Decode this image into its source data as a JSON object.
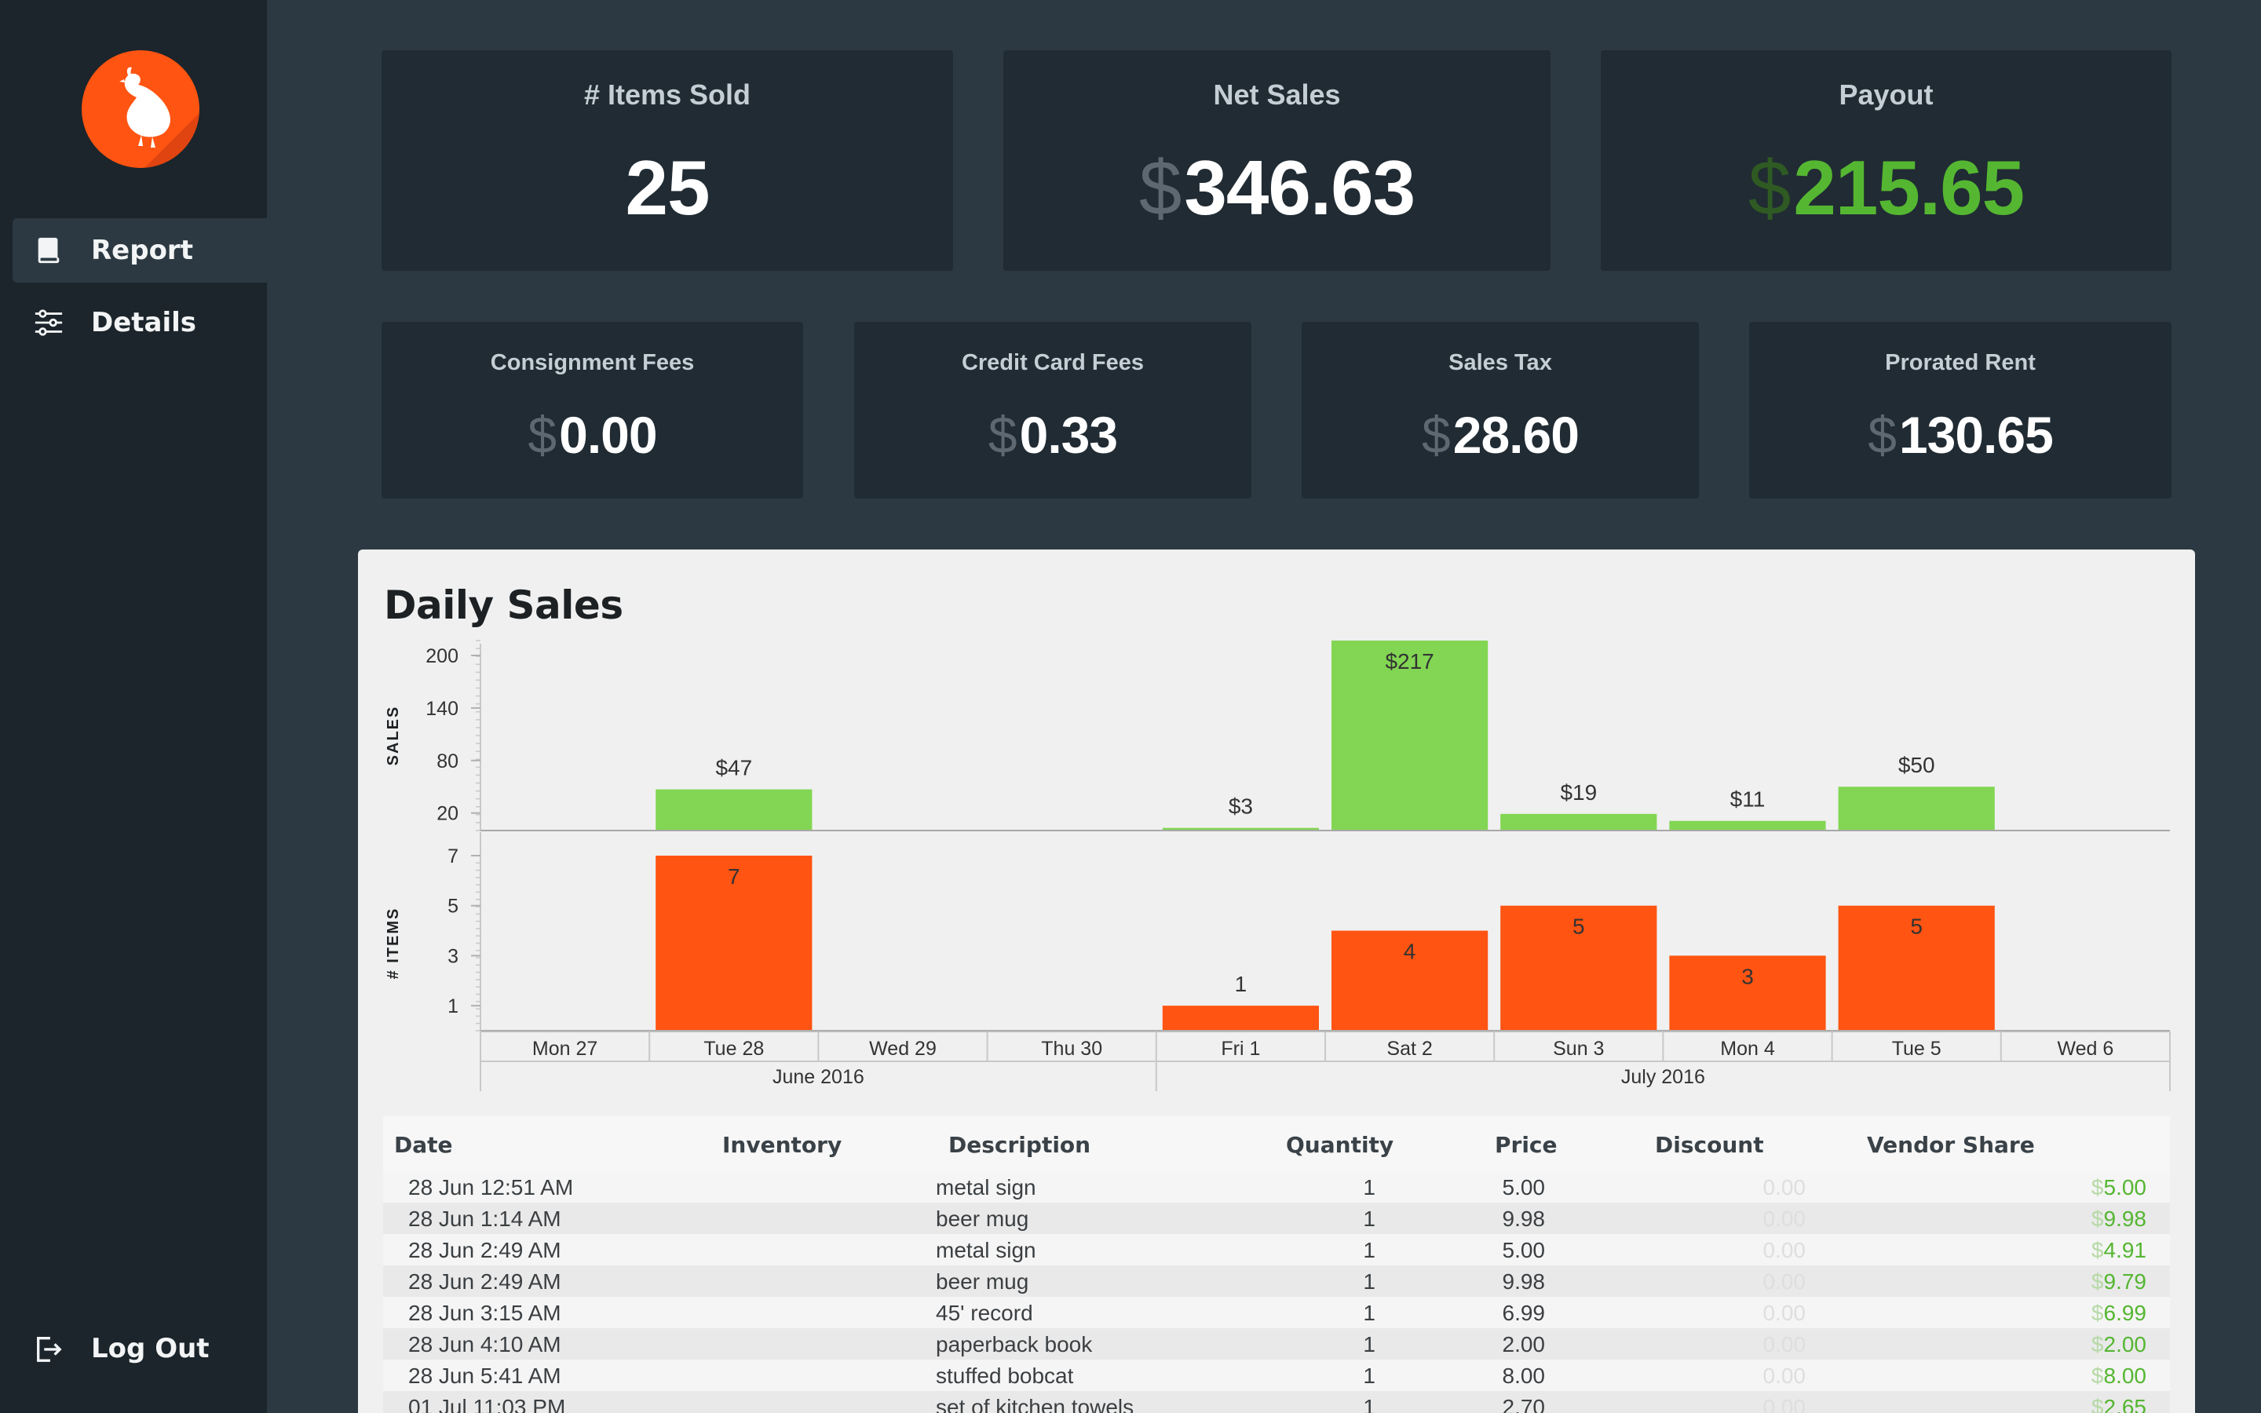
{
  "nav": {
    "report": "Report",
    "details": "Details",
    "logout": "Log Out"
  },
  "stats_top": [
    {
      "label": "# Items Sold",
      "value": "25",
      "currency": ""
    },
    {
      "label": "Net Sales",
      "value": "346.63",
      "currency": "$"
    },
    {
      "label": "Payout",
      "value": "215.65",
      "currency": "$"
    }
  ],
  "stats_bottom": [
    {
      "label": "Consignment Fees",
      "value": "0.00",
      "currency": "$"
    },
    {
      "label": "Credit Card Fees",
      "value": "0.33",
      "currency": "$"
    },
    {
      "label": "Sales Tax",
      "value": "28.60",
      "currency": "$"
    },
    {
      "label": "Prorated Rent",
      "value": "130.65",
      "currency": "$"
    }
  ],
  "panel": {
    "title": "Daily Sales"
  },
  "colors": {
    "sales_bar": "#82d653",
    "items_bar": "#ff5412",
    "payout": "#55b632",
    "accent": "#ff5412"
  },
  "icons": {
    "logo": "quail-logo-icon",
    "report": "book-icon",
    "details": "sliders-icon",
    "logout": "logout-icon"
  },
  "chart_data": {
    "type": "bar",
    "categories": [
      "Mon 27",
      "Tue 28",
      "Wed 29",
      "Thu 30",
      "Fri 1",
      "Sat 2",
      "Sun 3",
      "Mon 4",
      "Tue 5",
      "Wed 6"
    ],
    "groups": [
      {
        "label": "June 2016",
        "span": 4
      },
      {
        "label": "July 2016",
        "span": 6
      }
    ],
    "series": [
      {
        "name": "SALES",
        "values": [
          0,
          47,
          0,
          0,
          3,
          217,
          19,
          11,
          50,
          0
        ],
        "labels": [
          "",
          "$47",
          "",
          "",
          "$3",
          "$217",
          "$19",
          "$11",
          "$50",
          ""
        ],
        "ylabel": "SALES",
        "yticks": [
          20,
          80,
          140,
          200
        ],
        "ylim": [
          0,
          217
        ]
      },
      {
        "name": "# ITEMS",
        "values": [
          0,
          7,
          0,
          0,
          1,
          4,
          5,
          3,
          5,
          0
        ],
        "labels": [
          "",
          "7",
          "",
          "",
          "1",
          "4",
          "5",
          "3",
          "5",
          ""
        ],
        "ylabel": "# ITEMS",
        "yticks": [
          1,
          3,
          5,
          7
        ],
        "ylim": [
          0,
          7
        ]
      }
    ]
  },
  "table": {
    "headers": [
      "Date",
      "Inventory",
      "Description",
      "Quantity",
      "Price",
      "Discount",
      "Vendor Share"
    ],
    "rows": [
      {
        "date": "28 Jun 12:51 AM",
        "inventory": "",
        "description": "metal sign",
        "quantity": "1",
        "price": "5.00",
        "discount": "0.00",
        "vendor_share": "5.00"
      },
      {
        "date": "28 Jun 1:14 AM",
        "inventory": "",
        "description": "beer mug",
        "quantity": "1",
        "price": "9.98",
        "discount": "0.00",
        "vendor_share": "9.98"
      },
      {
        "date": "28 Jun 2:49 AM",
        "inventory": "",
        "description": "metal sign",
        "quantity": "1",
        "price": "5.00",
        "discount": "0.00",
        "vendor_share": "4.91"
      },
      {
        "date": "28 Jun 2:49 AM",
        "inventory": "",
        "description": "beer mug",
        "quantity": "1",
        "price": "9.98",
        "discount": "0.00",
        "vendor_share": "9.79"
      },
      {
        "date": "28 Jun 3:15 AM",
        "inventory": "",
        "description": "45' record",
        "quantity": "1",
        "price": "6.99",
        "discount": "0.00",
        "vendor_share": "6.99"
      },
      {
        "date": "28 Jun 4:10 AM",
        "inventory": "",
        "description": "paperback book",
        "quantity": "1",
        "price": "2.00",
        "discount": "0.00",
        "vendor_share": "2.00"
      },
      {
        "date": "28 Jun 5:41 AM",
        "inventory": "",
        "description": "stuffed bobcat",
        "quantity": "1",
        "price": "8.00",
        "discount": "0.00",
        "vendor_share": "8.00"
      },
      {
        "date": "01 Jul 11:03 PM",
        "inventory": "",
        "description": "set of kitchen towels",
        "quantity": "1",
        "price": "2.70",
        "discount": "0.00",
        "vendor_share": "2.65"
      }
    ]
  }
}
